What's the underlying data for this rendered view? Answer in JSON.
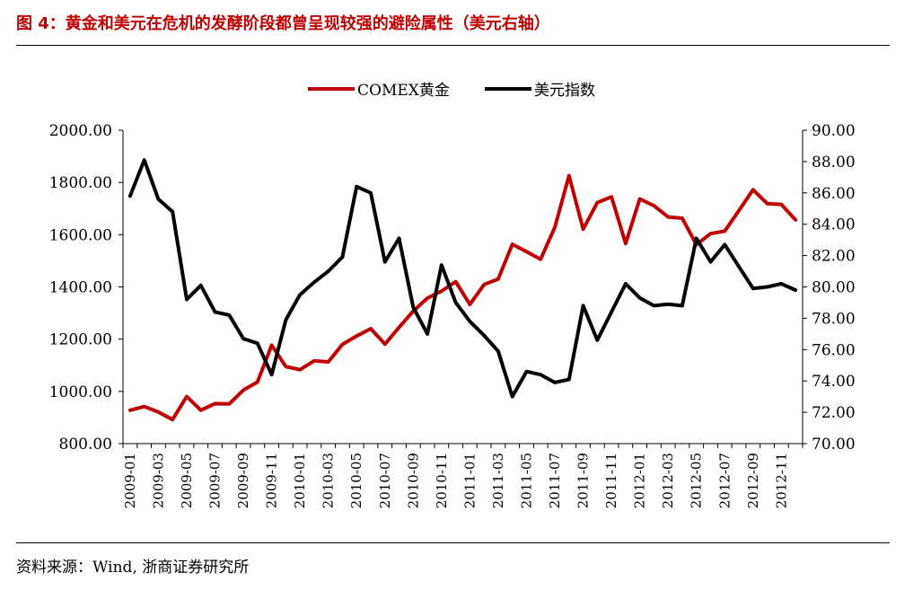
{
  "header": {
    "title": "图 4：黄金和美元在危机的发酵阶段都曾呈现较强的避险属性（美元右轴）"
  },
  "footer": {
    "source": "资料来源：Wind, 浙商证券研究所"
  },
  "chart_data": {
    "type": "line",
    "x": [
      "2009-01",
      "2009-02",
      "2009-03",
      "2009-04",
      "2009-05",
      "2009-06",
      "2009-07",
      "2009-08",
      "2009-09",
      "2009-10",
      "2009-11",
      "2009-12",
      "2010-01",
      "2010-02",
      "2010-03",
      "2010-04",
      "2010-05",
      "2010-06",
      "2010-07",
      "2010-08",
      "2010-09",
      "2010-10",
      "2010-11",
      "2010-12",
      "2011-01",
      "2011-02",
      "2011-03",
      "2011-04",
      "2011-05",
      "2011-06",
      "2011-07",
      "2011-08",
      "2011-09",
      "2011-10",
      "2011-11",
      "2011-12",
      "2012-01",
      "2012-02",
      "2012-03",
      "2012-04",
      "2012-05",
      "2012-06",
      "2012-07",
      "2012-08",
      "2012-09",
      "2012-10",
      "2012-11",
      "2012-12"
    ],
    "xticks": [
      "2009-01",
      "2009-03",
      "2009-05",
      "2009-07",
      "2009-09",
      "2009-11",
      "2010-01",
      "2010-03",
      "2010-05",
      "2010-07",
      "2010-09",
      "2010-11",
      "2011-01",
      "2011-03",
      "2011-05",
      "2011-07",
      "2011-09",
      "2011-11",
      "2012-01",
      "2012-03",
      "2012-05",
      "2012-07",
      "2012-09",
      "2012-11"
    ],
    "yleft": {
      "ylim": [
        800,
        2000
      ],
      "ticks": [
        "800.00",
        "1000.00",
        "1200.00",
        "1400.00",
        "1600.00",
        "1800.00",
        "2000.00"
      ]
    },
    "yright": {
      "ylim": [
        70,
        90
      ],
      "ticks": [
        "70.00",
        "72.00",
        "74.00",
        "76.00",
        "78.00",
        "80.00",
        "82.00",
        "84.00",
        "86.00",
        "88.00",
        "90.00"
      ]
    },
    "legend_position": "top-center",
    "series": [
      {
        "name": "COMEX黄金",
        "axis": "left",
        "color": "#c00000",
        "values": [
          928,
          942,
          921,
          892,
          980,
          928,
          953,
          952,
          1005,
          1036,
          1177,
          1095,
          1083,
          1117,
          1113,
          1180,
          1212,
          1240,
          1181,
          1245,
          1307,
          1357,
          1384,
          1420,
          1333,
          1409,
          1430,
          1563,
          1535,
          1506,
          1628,
          1826,
          1621,
          1723,
          1745,
          1566,
          1737,
          1711,
          1668,
          1663,
          1562,
          1604,
          1614,
          1692,
          1772,
          1719,
          1716,
          1657
        ]
      },
      {
        "name": "美元指数",
        "axis": "right",
        "color": "#000000",
        "values": [
          85.8,
          88.1,
          85.6,
          84.8,
          79.2,
          80.1,
          78.4,
          78.2,
          76.7,
          76.4,
          74.4,
          77.9,
          79.5,
          80.3,
          81.0,
          81.9,
          86.4,
          86.0,
          81.6,
          83.1,
          78.7,
          77.0,
          81.4,
          79.0,
          77.8,
          76.9,
          75.9,
          73.0,
          74.6,
          74.4,
          73.9,
          74.1,
          78.8,
          76.6,
          78.4,
          80.2,
          79.3,
          78.8,
          78.9,
          78.8,
          83.1,
          81.6,
          82.7,
          81.3,
          79.9,
          80.0,
          80.2,
          79.8
        ]
      }
    ]
  }
}
